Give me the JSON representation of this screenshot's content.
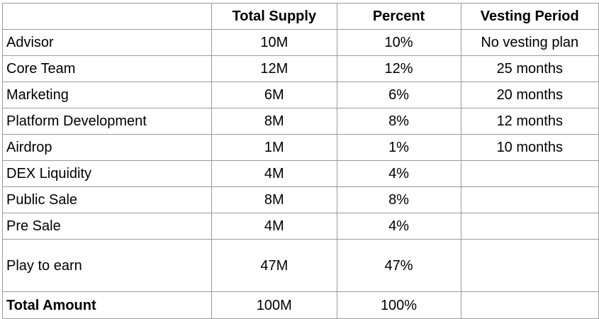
{
  "headers": {
    "category": "",
    "total_supply": "Total Supply",
    "percent": "Percent",
    "vesting": "Vesting Period"
  },
  "rows": [
    {
      "category": "Advisor",
      "total_supply": "10M",
      "percent": "10%",
      "vesting": "No vesting plan"
    },
    {
      "category": "Core Team",
      "total_supply": "12M",
      "percent": "12%",
      "vesting": "25 months"
    },
    {
      "category": "Marketing",
      "total_supply": "6M",
      "percent": "6%",
      "vesting": "20 months"
    },
    {
      "category": "Platform Development",
      "total_supply": "8M",
      "percent": "8%",
      "vesting": "12 months"
    },
    {
      "category": "Airdrop",
      "total_supply": "1M",
      "percent": "1%",
      "vesting": "10 months"
    },
    {
      "category": "DEX Liquidity",
      "total_supply": "4M",
      "percent": "4%",
      "vesting": ""
    },
    {
      "category": "Public Sale",
      "total_supply": "8M",
      "percent": "8%",
      "vesting": ""
    },
    {
      "category": "Pre Sale",
      "total_supply": "4M",
      "percent": "4%",
      "vesting": ""
    },
    {
      "category": "Play to earn",
      "total_supply": "47M",
      "percent": "47%",
      "vesting": ""
    }
  ],
  "total": {
    "category": "Total Amount",
    "total_supply": "100M",
    "percent": "100%",
    "vesting": ""
  }
}
